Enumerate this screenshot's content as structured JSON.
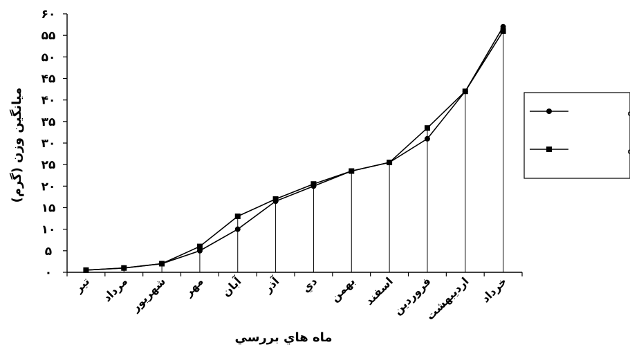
{
  "chart_data": {
    "type": "line",
    "xlabel": "ماه هاي بررسي",
    "ylabel": "ميانگين وزن (گرم)",
    "ylim": [
      0,
      60
    ],
    "yticks": [
      "۰",
      "۵",
      "۱۰",
      "۱۵",
      "۲۰",
      "۲۵",
      "۳۰",
      "۳۵",
      "۴۰",
      "۴۵",
      "۵۰",
      "۵۵",
      "۶۰"
    ],
    "categories": [
      "تير",
      "مرداد",
      "شهريور",
      "مهر",
      "آبان",
      "آذر",
      "دي",
      "بهمن",
      "اسفند",
      "فروردين",
      "ارديبهشت",
      "خرداد"
    ],
    "series": [
      {
        "name": "تمام ماده",
        "marker": "circle",
        "values": [
          0.5,
          1,
          2,
          5,
          10,
          16.5,
          20,
          23.5,
          25.5,
          31,
          42,
          57
        ]
      },
      {
        "name": "نر و ماده",
        "marker": "square",
        "values": [
          0.5,
          1,
          2,
          6,
          13,
          17,
          20.5,
          23.5,
          25.5,
          33.5,
          42,
          56
        ]
      }
    ],
    "drop_lines": true,
    "grid": false,
    "legend_position": "right",
    "colors": {
      "line": "#000000",
      "background": "#ffffff"
    }
  }
}
